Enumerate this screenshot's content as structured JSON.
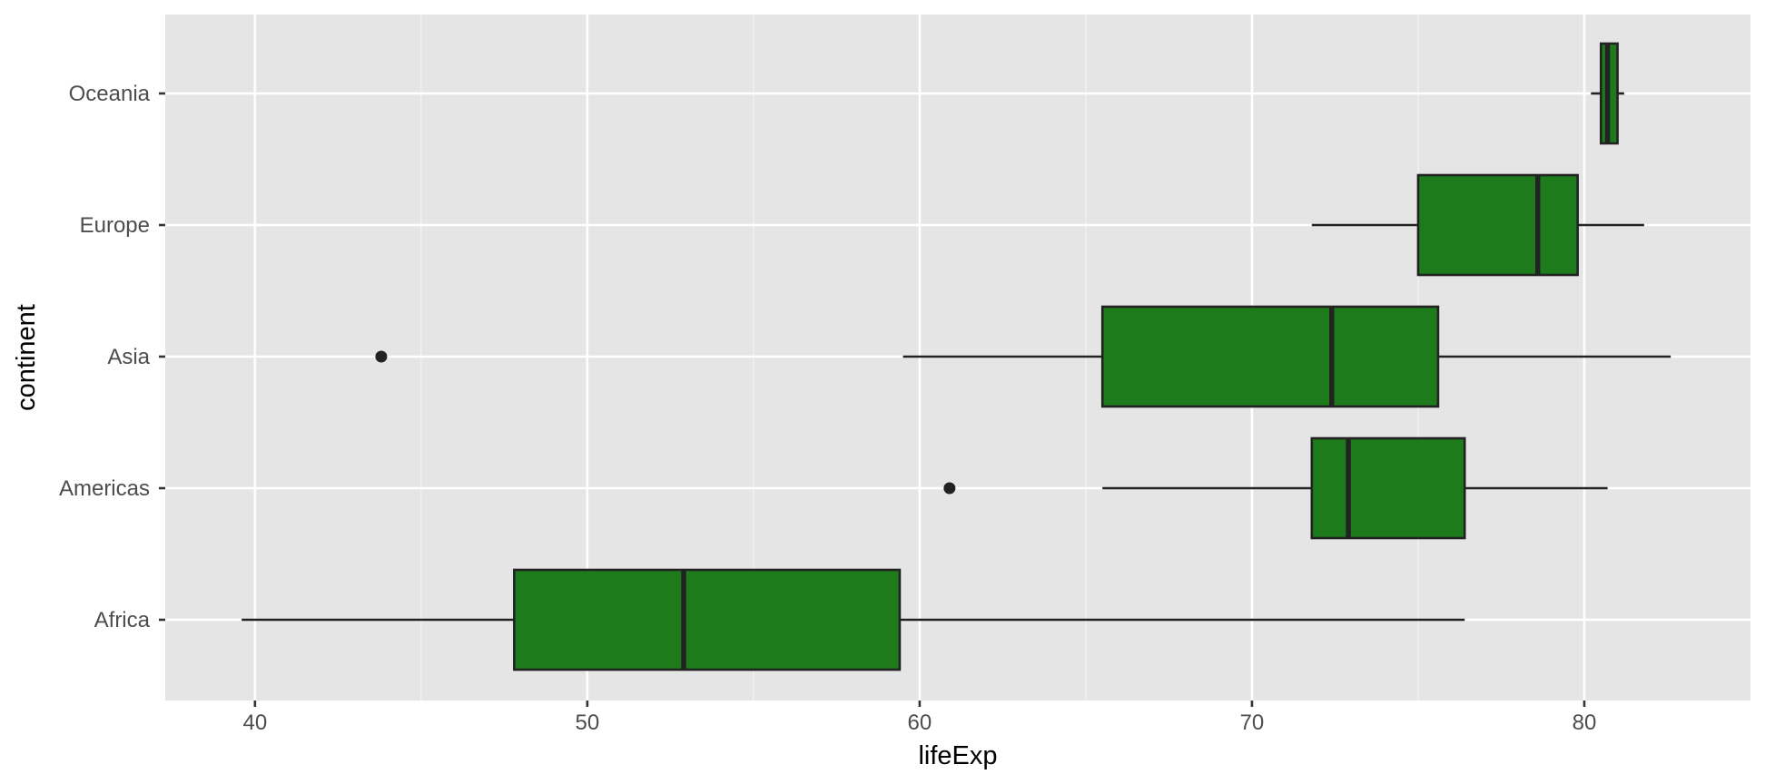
{
  "chart_data": {
    "type": "boxplot",
    "orientation": "horizontal",
    "xlabel": "lifeExp",
    "ylabel": "continent",
    "xlim": [
      37.3,
      85.0
    ],
    "x_ticks": [
      40,
      50,
      60,
      70,
      80
    ],
    "x_tick_labels": [
      "40",
      "50",
      "60",
      "70",
      "80"
    ],
    "categories": [
      "Africa",
      "Americas",
      "Asia",
      "Europe",
      "Oceania"
    ],
    "boxes": [
      {
        "category": "Africa",
        "whisker_low": 39.6,
        "q1": 47.8,
        "median": 52.9,
        "q3": 59.4,
        "whisker_high": 76.4,
        "outliers": []
      },
      {
        "category": "Americas",
        "whisker_low": 65.5,
        "q1": 71.8,
        "median": 72.9,
        "q3": 76.4,
        "whisker_high": 80.7,
        "outliers": [
          60.9
        ]
      },
      {
        "category": "Asia",
        "whisker_low": 59.5,
        "q1": 65.5,
        "median": 72.4,
        "q3": 75.6,
        "whisker_high": 82.6,
        "outliers": [
          43.8
        ]
      },
      {
        "category": "Europe",
        "whisker_low": 71.8,
        "q1": 75.0,
        "median": 78.6,
        "q3": 79.8,
        "whisker_high": 81.8,
        "outliers": []
      },
      {
        "category": "Oceania",
        "whisker_low": 80.2,
        "q1": 80.5,
        "median": 80.7,
        "q3": 81.0,
        "whisker_high": 81.2,
        "outliers": []
      }
    ],
    "grid": true,
    "legend": "none",
    "colors": {
      "box_fill": "#1e7b1c",
      "box_stroke": "#222222",
      "panel_background": "#e5e5e5",
      "grid_major": "#ffffff",
      "grid_minor": "#f2f2f2"
    }
  }
}
